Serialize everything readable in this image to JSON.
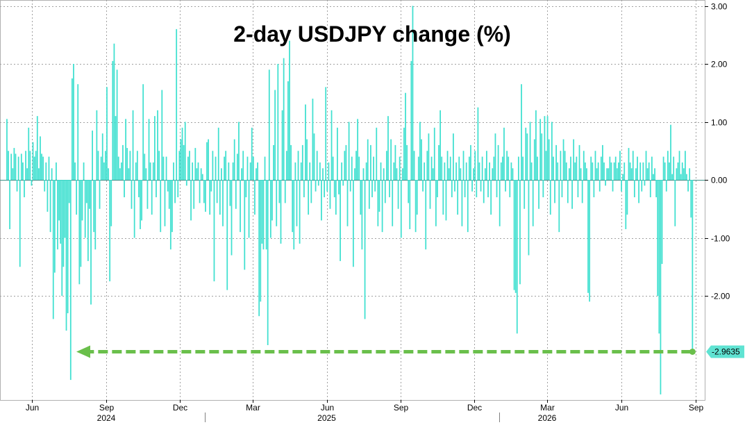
{
  "chart_data": {
    "type": "bar",
    "title": "2-day USDJPY change (%)",
    "xlabel": "",
    "ylabel": "",
    "ylim": [
      -3.7,
      3.1
    ],
    "yticks": [
      3,
      2,
      1,
      0,
      -1,
      -2
    ],
    "ytick_labels": [
      "3.00",
      "2.00",
      "1.00",
      "0.00",
      "-1.00",
      "-2.00"
    ],
    "x_start": "2024-05-01",
    "x_end": "2026-08-28",
    "month_ticks": [
      {
        "label": "Jun",
        "date": "2024-06-01"
      },
      {
        "label": "Sep",
        "date": "2024-09-01"
      },
      {
        "label": "Dec",
        "date": "2024-12-01"
      },
      {
        "label": "Mar",
        "date": "2025-03-01"
      },
      {
        "label": "Jun",
        "date": "2025-06-01"
      },
      {
        "label": "Sep",
        "date": "2025-09-01"
      },
      {
        "label": "Dec",
        "date": "2025-12-01"
      },
      {
        "label": "Mar",
        "date": "2026-03-01"
      },
      {
        "label": "Jun",
        "date": "2026-06-01"
      },
      {
        "label": "Sep",
        "date": "2026-09-01"
      }
    ],
    "year_labels": [
      {
        "label": "2024",
        "date": "2024-09-01"
      },
      {
        "label": "2025",
        "date": "2025-06-01"
      },
      {
        "label": "2026",
        "date": "2026-03-01"
      }
    ],
    "year_separators": [
      "2025-01-01",
      "2026-01-01"
    ],
    "grid": true,
    "series_color": "#40e0d0",
    "series": [
      {
        "values": [
          1.05,
          0.5,
          -0.85,
          0.45,
          0.2,
          0.55,
          0.45,
          -0.2,
          0.4,
          -1.5,
          0.45,
          0.3,
          -0.3,
          0.5,
          0.2,
          0.9,
          0.5,
          -0.1,
          0.65,
          0.4,
          0.5,
          1.1,
          0.2,
          0.75,
          0.45,
          0.4,
          -0.2,
          0.3,
          -0.55,
          0.4,
          -0.9,
          0.2,
          -2.4,
          -1.6,
          0.3,
          -1.2,
          -0.7,
          -1.1,
          -2.0,
          -1.5,
          -1.0,
          -2.6,
          -2.3,
          -0.4,
          -3.45,
          1.75,
          2.0,
          0.3,
          -0.6,
          1.65,
          -1.8,
          -1.5,
          -0.7,
          0.3,
          -1.0,
          -0.4,
          -1.4,
          -0.5,
          -2.15,
          0.85,
          -0.9,
          -1.2,
          1.2,
          0.5,
          -0.5,
          0.4,
          0.8,
          0.3,
          0.5,
          1.6,
          0.2,
          -1.75,
          -0.8,
          2.05,
          2.35,
          1.1,
          1.9,
          0.4,
          0.2,
          0.3,
          0.6,
          -0.3,
          1.05,
          0.55,
          0.2,
          0.5,
          -0.5,
          1.2,
          -1.0,
          0.3,
          0.5,
          -0.3,
          -0.85,
          -0.7,
          1.65,
          0.45,
          0.2,
          -0.5,
          1.05,
          0.3,
          -0.6,
          0.3,
          1.1,
          -0.3,
          1.2,
          0.5,
          -0.9,
          1.55,
          0.4,
          -0.8,
          0.4,
          -0.2,
          -0.5,
          -1.2,
          -0.9,
          0.3,
          -0.4,
          2.6,
          -0.3,
          0.5,
          0.7,
          0.9,
          0.6,
          1.0,
          -0.1,
          0.4,
          0.5,
          -0.7,
          0.3,
          -0.5,
          0.55,
          0.2,
          0.3,
          -0.4,
          0.2,
          0.1,
          -0.4,
          -0.55,
          0.65,
          0.7,
          -0.6,
          -0.2,
          0.5,
          -1.75,
          0.4,
          -0.4,
          0.9,
          -0.6,
          0.2,
          -0.8,
          0.4,
          0.5,
          -1.9,
          0.3,
          -0.45,
          -1.3,
          0.3,
          0.7,
          -0.5,
          0.45,
          1.0,
          -0.9,
          0.2,
          0.5,
          -1.55,
          -0.3,
          0.4,
          -1.0,
          0.3,
          0.9,
          0.4,
          -0.6,
          0.2,
          0.3,
          -2.35,
          -2.1,
          -1.1,
          -1.2,
          0.4,
          -1.2,
          -2.85,
          1.9,
          -1.0,
          -0.7,
          0.6,
          1.55,
          -0.8,
          2.0,
          -0.4,
          -1.1,
          1.2,
          2.1,
          -0.4,
          0.5,
          1.7,
          2.4,
          0.6,
          -0.9,
          -1.2,
          0.3,
          -0.8,
          0.5,
          -1.1,
          0.3,
          0.6,
          -0.3,
          1.3,
          0.7,
          -0.6,
          0.3,
          -0.4,
          1.4,
          0.8,
          -0.2,
          0.5,
          -0.1,
          0.3,
          -0.7,
          0.2,
          -0.3,
          1.6,
          -0.2,
          0.3,
          -0.5,
          1.2,
          0.4,
          -0.3,
          -0.6,
          0.9,
          -0.25,
          -1.4,
          0.3,
          -0.1,
          0.5,
          0.6,
          -0.8,
          1.0,
          -0.2,
          0.4,
          -1.5,
          0.2,
          0.5,
          1.05,
          0.4,
          -0.6,
          -1.2,
          0.2,
          -2.4,
          0.3,
          0.7,
          -0.5,
          0.6,
          -0.3,
          0.4,
          -0.2,
          0.9,
          -0.8,
          -0.55,
          0.3,
          -0.9,
          0.2,
          -0.4,
          0.5,
          1.1,
          -0.3,
          0.7,
          -0.8,
          0.3,
          0.6,
          0.2,
          -0.5,
          0.4,
          -1.0,
          0.2,
          0.9,
          1.5,
          0.6,
          -0.4,
          -0.85,
          2.05,
          3.0,
          0.5,
          -0.9,
          -0.6,
          0.4,
          1.0,
          0.7,
          -0.2,
          0.3,
          -1.2,
          0.5,
          0.8,
          -0.5,
          0.4,
          0.2,
          0.9,
          -0.8,
          -0.3,
          0.6,
          1.2,
          0.4,
          -0.6,
          0.3,
          -0.7,
          0.5,
          0.2,
          0.4,
          -0.3,
          0.8,
          -0.2,
          0.3,
          -0.6,
          0.4,
          0.2,
          -0.8,
          0.5,
          -0.3,
          0.3,
          -0.9,
          0.4,
          0.6,
          -0.2,
          0.2,
          0.5,
          -0.3,
          1.25,
          0.3,
          -0.2,
          0.4,
          -0.4,
          0.2,
          0.5,
          -0.3,
          0.3,
          -0.6,
          0.2,
          0.4,
          0.8,
          -0.3,
          0.6,
          -0.8,
          0.3,
          0.4,
          0.9,
          -0.2,
          0.5,
          0.4,
          -0.3,
          0.3,
          0.2,
          -1.9,
          -1.95,
          -2.65,
          0.4,
          -1.8,
          1.65,
          0.4,
          -0.5,
          0.9,
          0.8,
          -1.3,
          1.0,
          0.3,
          -0.8,
          0.7,
          1.2,
          0.4,
          -0.5,
          1.05,
          0.8,
          -0.3,
          1.1,
          0.5,
          1.1,
          0.7,
          -0.6,
          1.0,
          0.4,
          -0.4,
          0.6,
          0.3,
          -0.9,
          0.5,
          -0.3,
          0.7,
          0.5,
          0.3,
          -0.4,
          0.2,
          0.4,
          -0.5,
          0.7,
          0.3,
          0.4,
          -0.3,
          0.6,
          0.2,
          -0.4,
          0.5,
          0.3,
          0.2,
          -1.95,
          -2.1,
          0.4,
          0.3,
          -0.3,
          0.5,
          0.2,
          0.3,
          -0.2,
          0.4,
          0.6,
          0.3,
          -0.1,
          0.2,
          0.2,
          0.4,
          0.3,
          -0.2,
          0.3,
          0.4,
          0.2,
          0.3,
          0.5,
          -0.2,
          0.1,
          0.3,
          -0.85,
          -0.6,
          0.55,
          0.3,
          0.2,
          0.5,
          -0.3,
          0.2,
          0.4,
          -0.4,
          0.3,
          -0.2,
          0.3,
          -0.1,
          0.5,
          0.2,
          0.3,
          -0.3,
          0.4,
          0.1,
          0.2,
          -0.3,
          -2.0,
          -2.65,
          -3.7,
          -1.45,
          0.4,
          0.3,
          -0.2,
          0.5,
          0.3,
          0.95,
          0.1,
          0.4,
          -0.8,
          0.2,
          0.3,
          0.5,
          0.1,
          0.3,
          0.2,
          0.5,
          0.1,
          -0.2,
          0.2,
          -0.65,
          -2.96
        ]
      }
    ],
    "annotation": {
      "label": "-2.9635",
      "value": -2.9635,
      "color": "#6abf4b"
    }
  }
}
